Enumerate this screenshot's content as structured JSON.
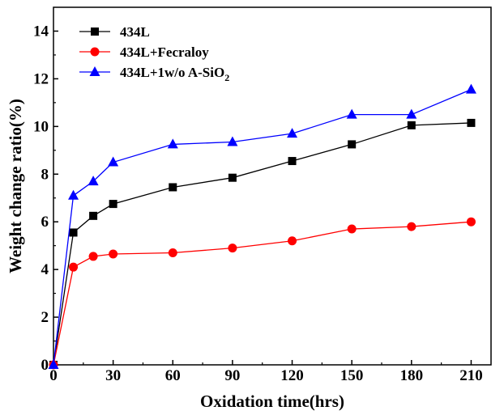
{
  "chart_data": {
    "type": "line",
    "title": "",
    "xlabel": "Oxidation time(hrs)",
    "ylabel": "Weight change ratio(%)",
    "xlim": [
      0,
      220
    ],
    "ylim": [
      0,
      15
    ],
    "x_ticks": [
      0,
      30,
      60,
      90,
      120,
      150,
      180,
      210
    ],
    "y_ticks": [
      0,
      2,
      4,
      6,
      8,
      10,
      12,
      14
    ],
    "legend_position": "top-left",
    "grid": false,
    "x": [
      0,
      10,
      20,
      30,
      60,
      90,
      120,
      150,
      180,
      210
    ],
    "series": [
      {
        "name": "434L",
        "color": "#000000",
        "marker": "square",
        "values": [
          0,
          5.55,
          6.25,
          6.75,
          7.45,
          7.85,
          8.55,
          9.25,
          10.05,
          10.15
        ]
      },
      {
        "name": "434L+Fecraloy",
        "color": "#ff0000",
        "marker": "circle",
        "values": [
          0,
          4.1,
          4.55,
          4.65,
          4.7,
          4.9,
          5.2,
          5.7,
          5.8,
          6.0
        ]
      },
      {
        "name": "434L+1w/o A-SiO",
        "name_subscript": "2",
        "color": "#0000ff",
        "marker": "triangle",
        "values": [
          0,
          7.1,
          7.7,
          8.5,
          9.25,
          9.35,
          9.7,
          10.5,
          10.5,
          11.55
        ]
      }
    ]
  }
}
